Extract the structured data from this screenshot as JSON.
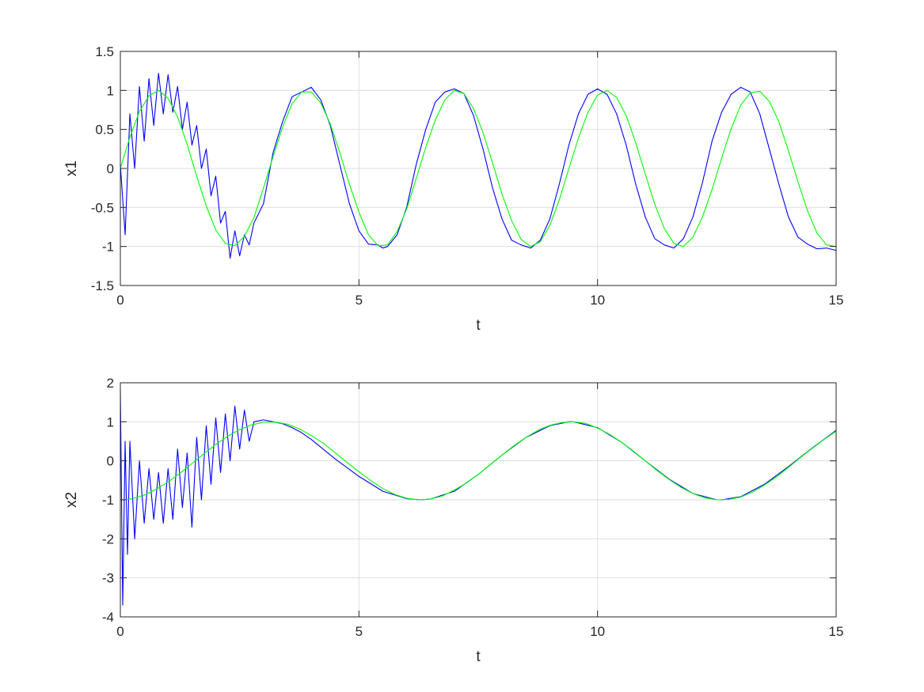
{
  "chart_data": [
    {
      "type": "line",
      "title": "",
      "xlabel": "t",
      "ylabel": "x1",
      "xlim": [
        0,
        15
      ],
      "ylim": [
        -1.5,
        1.5
      ],
      "xticks": [
        "0",
        "5",
        "10",
        "15"
      ],
      "yticks": [
        "-1.5",
        "-1",
        "-0.5",
        "0",
        "0.5",
        "1",
        "1.5"
      ],
      "grid": true,
      "legend": "none",
      "series": [
        {
          "color": "#0000ff",
          "x": [
            0,
            0.1,
            0.2,
            0.3,
            0.4,
            0.5,
            0.6,
            0.7,
            0.8,
            0.9,
            1.0,
            1.1,
            1.2,
            1.3,
            1.4,
            1.5,
            1.6,
            1.7,
            1.8,
            1.9,
            2.0,
            2.1,
            2.2,
            2.3,
            2.4,
            2.5,
            2.6,
            2.7,
            2.8,
            3.0,
            3.2,
            3.4,
            3.6,
            3.8,
            4.0,
            4.2,
            4.4,
            4.6,
            4.8,
            5.0,
            5.2,
            5.4,
            5.5,
            5.6,
            5.8,
            6.0,
            6.2,
            6.4,
            6.6,
            6.8,
            7.0,
            7.2,
            7.4,
            7.6,
            7.8,
            8.0,
            8.2,
            8.4,
            8.6,
            8.8,
            9.0,
            9.2,
            9.4,
            9.6,
            9.8,
            10.0,
            10.2,
            10.4,
            10.6,
            10.8,
            11.0,
            11.2,
            11.4,
            11.6,
            11.8,
            12.0,
            12.2,
            12.4,
            12.6,
            12.8,
            13.0,
            13.2,
            13.4,
            13.6,
            13.8,
            14.0,
            14.2,
            14.4,
            14.6,
            14.8,
            15.0
          ],
          "y": [
            0.05,
            -0.85,
            0.7,
            0.0,
            1.05,
            0.35,
            1.15,
            0.55,
            1.22,
            0.7,
            1.2,
            0.72,
            1.05,
            0.5,
            0.85,
            0.3,
            0.55,
            0.0,
            0.25,
            -0.35,
            -0.1,
            -0.7,
            -0.55,
            -1.15,
            -0.8,
            -1.12,
            -0.85,
            -0.98,
            -0.7,
            -0.45,
            0.2,
            0.6,
            0.92,
            0.98,
            1.04,
            0.88,
            0.55,
            0.05,
            -0.45,
            -0.8,
            -0.97,
            -0.98,
            -1.02,
            -1.0,
            -0.85,
            -0.5,
            0.05,
            0.5,
            0.85,
            0.98,
            1.02,
            0.96,
            0.68,
            0.25,
            -0.25,
            -0.65,
            -0.92,
            -0.98,
            -1.02,
            -0.92,
            -0.65,
            -0.2,
            0.3,
            0.7,
            0.95,
            1.02,
            0.95,
            0.7,
            0.3,
            -0.2,
            -0.62,
            -0.9,
            -0.98,
            -1.02,
            -0.9,
            -0.62,
            -0.18,
            0.35,
            0.72,
            0.95,
            1.04,
            0.98,
            0.7,
            0.25,
            -0.2,
            -0.62,
            -0.88,
            -0.97,
            -1.03,
            -1.02,
            -1.05
          ]
        },
        {
          "color": "#00ff00",
          "x": [
            0,
            0.2,
            0.4,
            0.6,
            0.8,
            1.0,
            1.2,
            1.4,
            1.6,
            1.8,
            2.0,
            2.2,
            2.4,
            2.6,
            2.8,
            3.0,
            3.2,
            3.4,
            3.6,
            3.8,
            4.0,
            4.2,
            4.4,
            4.6,
            4.8,
            5.0,
            5.2,
            5.4,
            5.6,
            5.8,
            6.0,
            6.2,
            6.4,
            6.6,
            6.8,
            7.0,
            7.2,
            7.4,
            7.6,
            7.8,
            8.0,
            8.2,
            8.4,
            8.6,
            8.8,
            9.0,
            9.2,
            9.4,
            9.6,
            9.8,
            10.0,
            10.2,
            10.4,
            10.6,
            10.8,
            11.0,
            11.2,
            11.4,
            11.6,
            11.8,
            12.0,
            12.2,
            12.4,
            12.6,
            12.8,
            13.0,
            13.2,
            13.4,
            13.6,
            13.8,
            14.0,
            14.2,
            14.4,
            14.6,
            14.8,
            15.0
          ],
          "y": [
            0.0,
            0.4,
            0.73,
            0.93,
            1.0,
            0.9,
            0.66,
            0.31,
            -0.1,
            -0.48,
            -0.79,
            -0.96,
            -0.99,
            -0.87,
            -0.63,
            -0.25,
            0.15,
            0.53,
            0.83,
            0.98,
            0.98,
            0.84,
            0.57,
            0.2,
            -0.2,
            -0.56,
            -0.85,
            -0.99,
            -0.98,
            -0.81,
            -0.52,
            -0.13,
            0.27,
            0.62,
            0.88,
            1.0,
            0.96,
            0.77,
            0.46,
            0.07,
            -0.33,
            -0.67,
            -0.91,
            -1.0,
            -0.94,
            -0.73,
            -0.4,
            0.0,
            0.39,
            0.72,
            0.94,
            1.0,
            0.91,
            0.68,
            0.33,
            -0.07,
            -0.46,
            -0.77,
            -0.96,
            -1.0,
            -0.88,
            -0.62,
            -0.27,
            0.13,
            0.51,
            0.81,
            0.97,
            0.99,
            0.86,
            0.6,
            0.23,
            -0.17,
            -0.54,
            -0.83,
            -0.98,
            -1.0
          ]
        }
      ]
    },
    {
      "type": "line",
      "title": "",
      "xlabel": "t",
      "ylabel": "x2",
      "xlim": [
        0,
        15
      ],
      "ylim": [
        -4,
        2
      ],
      "xticks": [
        "0",
        "5",
        "10",
        "15"
      ],
      "yticks": [
        "-4",
        "-3",
        "-2",
        "-1",
        "0",
        "1",
        "2"
      ],
      "grid": true,
      "legend": "none",
      "series": [
        {
          "color": "#0000ff",
          "x": [
            0,
            0.05,
            0.1,
            0.15,
            0.2,
            0.3,
            0.4,
            0.5,
            0.6,
            0.7,
            0.8,
            0.9,
            1.0,
            1.1,
            1.2,
            1.3,
            1.4,
            1.5,
            1.6,
            1.7,
            1.8,
            1.9,
            2.0,
            2.1,
            2.2,
            2.3,
            2.4,
            2.5,
            2.6,
            2.7,
            2.8,
            3.0,
            3.2,
            3.4,
            3.6,
            3.8,
            4.0,
            4.5,
            5.0,
            5.5,
            6.0,
            6.3,
            6.5,
            7.0,
            7.5,
            8.0,
            8.5,
            9.0,
            9.4,
            9.5,
            10.0,
            10.5,
            11.0,
            11.5,
            12.0,
            12.5,
            12.6,
            13.0,
            13.5,
            14.0,
            14.5,
            15.0
          ],
          "y": [
            1.8,
            -3.7,
            0.5,
            -2.4,
            0.5,
            -2.0,
            0.0,
            -1.6,
            -0.2,
            -1.5,
            -0.3,
            -1.6,
            -0.2,
            -1.5,
            0.3,
            -1.2,
            0.2,
            -1.7,
            0.6,
            -1.0,
            0.9,
            -0.6,
            1.1,
            -0.3,
            1.2,
            0.0,
            1.4,
            0.3,
            1.3,
            0.5,
            1.0,
            1.05,
            1.0,
            0.95,
            0.85,
            0.72,
            0.55,
            0.05,
            -0.4,
            -0.78,
            -0.97,
            -1.0,
            -0.98,
            -0.78,
            -0.35,
            0.15,
            0.6,
            0.9,
            1.0,
            1.0,
            0.85,
            0.48,
            0.0,
            -0.47,
            -0.84,
            -1.0,
            -1.0,
            -0.92,
            -0.6,
            -0.15,
            0.33,
            0.78
          ]
        },
        {
          "color": "#00ff00",
          "x": [
            0,
            0.25,
            0.5,
            0.75,
            1.0,
            1.25,
            1.5,
            1.75,
            2.0,
            2.25,
            2.5,
            2.75,
            3.0,
            3.25,
            3.5,
            3.75,
            4.0,
            4.25,
            4.5,
            4.75,
            5.0,
            5.25,
            5.5,
            5.75,
            6.0,
            6.25,
            6.5,
            6.75,
            7.0,
            7.25,
            7.5,
            7.75,
            8.0,
            8.25,
            8.5,
            8.75,
            9.0,
            9.25,
            9.5,
            9.75,
            10.0,
            10.25,
            10.5,
            10.75,
            11.0,
            11.25,
            11.5,
            11.75,
            12.0,
            12.25,
            12.5,
            12.75,
            13.0,
            13.25,
            13.5,
            13.75,
            14.0,
            14.25,
            14.5,
            14.75,
            15.0
          ],
          "y": [
            -1.0,
            -0.97,
            -0.88,
            -0.73,
            -0.54,
            -0.32,
            -0.07,
            0.18,
            0.42,
            0.63,
            0.8,
            0.92,
            0.99,
            0.99,
            0.94,
            0.82,
            0.65,
            0.45,
            0.21,
            -0.04,
            -0.28,
            -0.51,
            -0.71,
            -0.86,
            -0.96,
            -1.0,
            -0.98,
            -0.9,
            -0.75,
            -0.57,
            -0.35,
            -0.1,
            0.15,
            0.39,
            0.6,
            0.78,
            0.91,
            0.98,
            1.0,
            0.96,
            0.84,
            0.68,
            0.48,
            0.25,
            0.0,
            -0.25,
            -0.48,
            -0.68,
            -0.84,
            -0.95,
            -1.0,
            -0.99,
            -0.93,
            -0.8,
            -0.62,
            -0.41,
            -0.17,
            0.08,
            0.32,
            0.55,
            0.76
          ]
        }
      ]
    }
  ]
}
